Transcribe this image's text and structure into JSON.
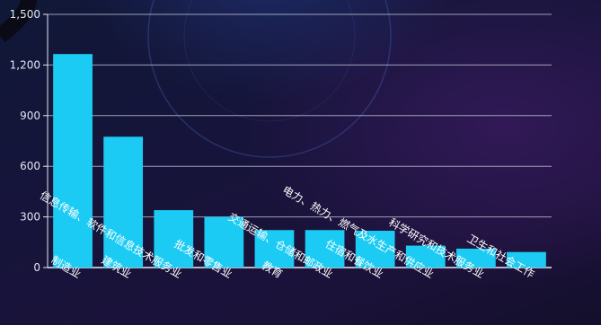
{
  "chart_data": {
    "type": "bar",
    "categories": [
      "制造业",
      "建筑业",
      "信息传输、软件和信息技术服务业",
      "批发和零售业",
      "教育",
      "交通运输、仓储和邮政业",
      "住宿和餐饮业",
      "电力、热力、燃气及水生产和供应业",
      "科学研究和技术服务业",
      "卫生和社会工作"
    ],
    "values": [
      1265,
      775,
      340,
      300,
      222,
      222,
      218,
      130,
      112,
      92
    ],
    "yticks": [
      0,
      300,
      600,
      900,
      1200,
      1500
    ],
    "yticklabels": [
      "0",
      "300",
      "600",
      "900",
      "1,200",
      "1,500"
    ],
    "ylim": [
      0,
      1500
    ],
    "grid": true,
    "title": "",
    "xlabel": "",
    "ylabel": ""
  },
  "colors": {
    "bar": "#1ccbf3",
    "grid": "#c9cde0",
    "axis": "#e6e9f2"
  }
}
